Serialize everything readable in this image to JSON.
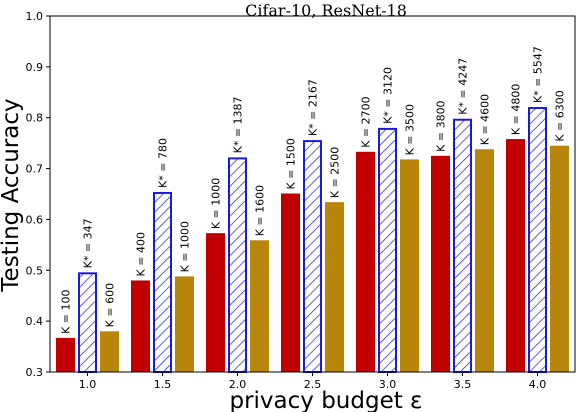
{
  "chart_data": {
    "type": "bar",
    "title": "Cifar-10, ResNet-18",
    "xlabel": "privacy budget ε",
    "ylabel": "Testing Accuracy",
    "ylim": [
      0.3,
      1.0
    ],
    "yticks": [
      "0.3",
      "0.4",
      "0.5",
      "0.6",
      "0.7",
      "0.8",
      "0.9",
      "1.0"
    ],
    "categories": [
      "1.0",
      "1.5",
      "2.0",
      "2.5",
      "3.0",
      "3.5",
      "4.0"
    ],
    "series": [
      {
        "values": [
          0.367,
          0.48,
          0.573,
          0.651,
          0.733,
          0.725,
          0.758
        ],
        "labels": [
          "K = 100",
          "K = 400",
          "K = 1000",
          "K = 1500",
          "K = 2700",
          "K = 3800",
          "K = 4800"
        ],
        "color": "#c00000",
        "style": "solid"
      },
      {
        "values": [
          0.496,
          0.654,
          0.722,
          0.756,
          0.78,
          0.798,
          0.821
        ],
        "labels": [
          "K* = 347",
          "K* = 780",
          "K* = 1387",
          "K* = 2167",
          "K* = 3120",
          "K* = 4247",
          "K* = 5547"
        ],
        "color": "#1a1adb",
        "style": "hatched"
      },
      {
        "values": [
          0.38,
          0.488,
          0.559,
          0.634,
          0.718,
          0.738,
          0.745
        ],
        "labels": [
          "K = 600",
          "K = 1000",
          "K = 1600",
          "K = 2500",
          "K = 3500",
          "K = 4600",
          "K = 6300"
        ],
        "color": "#b8860b",
        "style": "solid"
      }
    ],
    "grid": false,
    "legend": "none"
  }
}
